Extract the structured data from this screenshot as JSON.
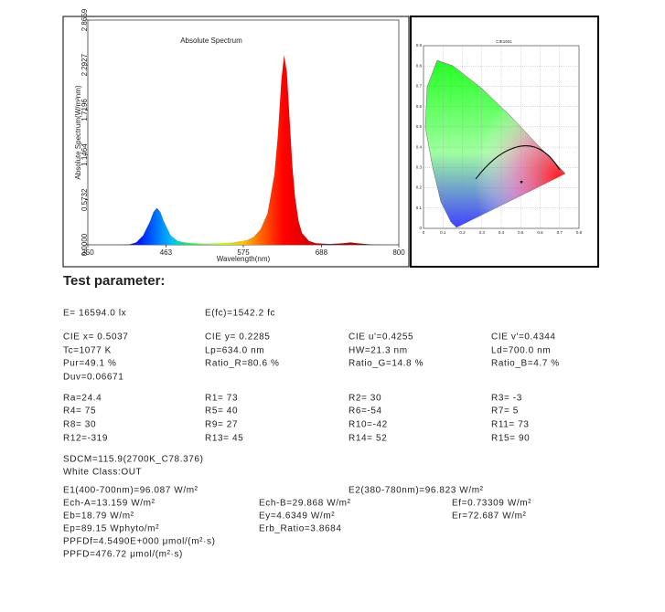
{
  "chart_data": [
    {
      "type": "area",
      "title": "Absolute Spectrum",
      "x_label": "Wavelength(nm)",
      "y_label": "Absolute Spectrum(W/m²nm)",
      "x": [
        350,
        400,
        410,
        420,
        430,
        440,
        445,
        450,
        455,
        460,
        470,
        480,
        490,
        500,
        520,
        540,
        560,
        580,
        590,
        600,
        610,
        620,
        625,
        630,
        634,
        638,
        642,
        646,
        650,
        655,
        660,
        670,
        680,
        700,
        720,
        730,
        740,
        760,
        780,
        800
      ],
      "values": [
        0,
        0,
        0.005,
        0.03,
        0.12,
        0.3,
        0.42,
        0.47,
        0.42,
        0.3,
        0.12,
        0.05,
        0.03,
        0.02,
        0.015,
        0.02,
        0.03,
        0.06,
        0.1,
        0.2,
        0.4,
        0.9,
        1.4,
        2.1,
        2.42,
        2.2,
        1.6,
        1.0,
        0.6,
        0.3,
        0.15,
        0.05,
        0.02,
        0.01,
        0.02,
        0.03,
        0.02,
        0.005,
        0,
        0
      ],
      "xlim": [
        350,
        800
      ],
      "xticks": [
        350,
        463,
        575,
        688,
        800
      ],
      "ylim": [
        0,
        2.8659
      ],
      "yticks": [
        {
          "value": 0,
          "label": "0.0000"
        },
        0.5732,
        1.1464,
        1.7196,
        2.2927,
        2.8659
      ]
    },
    {
      "type": "scatter",
      "title": "CIE1931",
      "x": [
        0.5037
      ],
      "values": [
        0.2285
      ],
      "color": "#000000",
      "xlim": [
        0,
        0.8
      ],
      "xticks": [
        0,
        0.1,
        0.2,
        0.3,
        0.4,
        0.5,
        0.6,
        0.7,
        0.8
      ],
      "ylim": [
        0,
        0.9
      ],
      "yticks": [
        0,
        0.1,
        0.2,
        0.3,
        0.4,
        0.5,
        0.6,
        0.7,
        0.8,
        0.9
      ],
      "grid": true
    }
  ],
  "parameters": {
    "heading": "Test parameter:",
    "illuminance": [
      "E=  16594.0 lx",
      "E(fc)=1542.2 fc"
    ],
    "colorimetry": [
      [
        "CIE x= 0.5037",
        "CIE y= 0.2285",
        "CIE u'=0.4255",
        "CIE v'=0.4344"
      ],
      [
        "Tc=1077 K",
        "Lp=634.0 nm",
        "HW=21.3 nm",
        "Ld=700.0 nm"
      ],
      [
        "Pur=49.1 %",
        "Ratio_R=80.6 %",
        "Ratio_G=14.8 %",
        "Ratio_B=4.7 %"
      ],
      [
        "Duv=0.06671"
      ]
    ],
    "rendering": [
      [
        "Ra=24.4",
        "R1= 73",
        "R2= 30",
        "R3= -3"
      ],
      [
        "R4= 75",
        "R5= 40",
        "R6=-54",
        "R7= 5"
      ],
      [
        "R8= 30",
        "R9= 27",
        "R10=-42",
        "R11= 73"
      ],
      [
        "R12=-319",
        "R13= 45",
        "R14= 52",
        "R15= 90"
      ]
    ],
    "classification": [
      "SDCM=115.9(2700K_C78.376)",
      "White Class:OUT"
    ],
    "irradiance": [
      "E1(400-700nm)=96.087 W/m²",
      "E2(380-780nm)=96.823 W/m²"
    ],
    "bands": [
      [
        "Ech-A=13.159 W/m²",
        "Ech-B=29.868 W/m²",
        "Ef=0.73309 W/m²"
      ],
      [
        "Eb=18.79 W/m²",
        "Ey=4.6349 W/m²",
        "Er=72.687 W/m²"
      ],
      [
        "Ep=89.15 Wphyto/m²",
        "Erb_Ratio=3.8684"
      ]
    ],
    "photon": [
      "PPFDf=4.5490E+000 μmol/(m²·s)",
      "PPFD=476.72 μmol/(m²·s)"
    ]
  }
}
